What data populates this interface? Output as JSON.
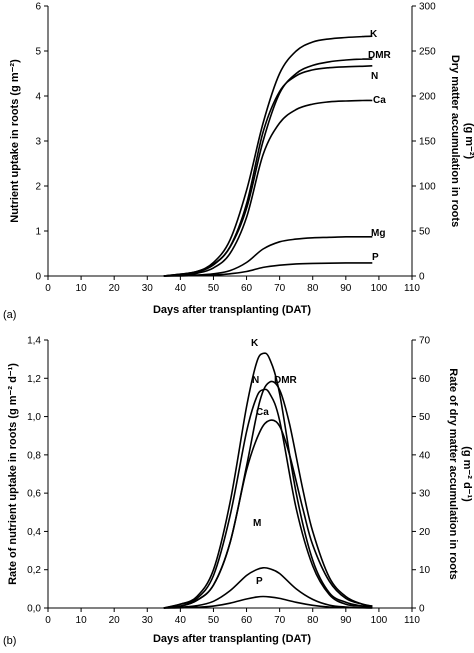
{
  "chart_data": [
    {
      "type": "line",
      "panel_label": "(a)",
      "xlabel": "Days after transplanting (DAT)",
      "ylabel": "Nutrient uptake in roots (g m⁻²)",
      "y2label_line1": "Dry matter accumulation in roots",
      "y2label_line2": "(g m⁻²)",
      "xlim": [
        0,
        110
      ],
      "ylim": [
        0,
        6
      ],
      "y2lim": [
        0,
        300
      ],
      "xticks": [
        "0",
        "10",
        "20",
        "30",
        "40",
        "50",
        "60",
        "70",
        "80",
        "90",
        "100",
        "110"
      ],
      "yticks": [
        "0",
        "1",
        "2",
        "3",
        "4",
        "5",
        "6"
      ],
      "y2ticks": [
        "0",
        "50",
        "100",
        "150",
        "200",
        "250",
        "300"
      ],
      "grid": false,
      "series": [
        {
          "name": "K",
          "axis": "left",
          "x": [
            35,
            40,
            45,
            50,
            55,
            60,
            65,
            70,
            75,
            80,
            85,
            90,
            95,
            98
          ],
          "y": [
            0.0,
            0.04,
            0.1,
            0.3,
            0.8,
            1.9,
            3.4,
            4.5,
            5.0,
            5.2,
            5.27,
            5.3,
            5.32,
            5.33
          ]
        },
        {
          "name": "DMR",
          "axis": "right",
          "x": [
            35,
            40,
            45,
            50,
            55,
            60,
            65,
            70,
            75,
            80,
            85,
            90,
            95,
            98
          ],
          "y": [
            0,
            2,
            5,
            13,
            32,
            75,
            150,
            203,
            225,
            234,
            238,
            240,
            241,
            241
          ]
        },
        {
          "name": "N",
          "axis": "left",
          "x": [
            35,
            40,
            45,
            50,
            55,
            60,
            65,
            70,
            75,
            80,
            85,
            90,
            95,
            98
          ],
          "y": [
            0.0,
            0.03,
            0.08,
            0.25,
            0.65,
            1.6,
            3.2,
            4.1,
            4.45,
            4.58,
            4.63,
            4.65,
            4.66,
            4.67
          ]
        },
        {
          "name": "Ca",
          "axis": "left",
          "x": [
            35,
            40,
            45,
            50,
            55,
            60,
            65,
            70,
            75,
            80,
            85,
            90,
            95,
            98
          ],
          "y": [
            0.0,
            0.02,
            0.06,
            0.18,
            0.5,
            1.3,
            2.7,
            3.4,
            3.7,
            3.82,
            3.87,
            3.89,
            3.9,
            3.9
          ]
        },
        {
          "name": "Mg",
          "axis": "left",
          "x": [
            35,
            40,
            45,
            50,
            55,
            60,
            65,
            70,
            75,
            80,
            85,
            90,
            95,
            98
          ],
          "y": [
            0.0,
            0.01,
            0.02,
            0.05,
            0.12,
            0.3,
            0.6,
            0.76,
            0.82,
            0.85,
            0.86,
            0.87,
            0.87,
            0.87
          ]
        },
        {
          "name": "P",
          "axis": "left",
          "x": [
            35,
            40,
            45,
            50,
            55,
            60,
            65,
            70,
            75,
            80,
            85,
            90,
            95,
            98
          ],
          "y": [
            0.0,
            0.003,
            0.01,
            0.02,
            0.05,
            0.1,
            0.19,
            0.24,
            0.27,
            0.28,
            0.285,
            0.29,
            0.29,
            0.29
          ]
        }
      ]
    },
    {
      "type": "line",
      "panel_label": "(b)",
      "xlabel": "Days after transplanting (DAT)",
      "ylabel": "Rate of nutrient uptake in roots (g m⁻² d⁻¹)",
      "y2label_line1": "Rate of dry matter accumulation in roots",
      "y2label_line2": "(g m⁻² d⁻¹)",
      "xlim": [
        0,
        110
      ],
      "ylim": [
        0,
        1.4
      ],
      "y2lim": [
        0,
        70
      ],
      "xticks": [
        "0",
        "10",
        "20",
        "30",
        "40",
        "50",
        "60",
        "70",
        "80",
        "90",
        "100",
        "110"
      ],
      "yticks": [
        "0,0",
        "0,2",
        "0,4",
        "0,6",
        "0,8",
        "1,0",
        "1,2",
        "1,4"
      ],
      "y2ticks": [
        "0",
        "10",
        "20",
        "30",
        "40",
        "50",
        "60",
        "70"
      ],
      "grid": false,
      "series": [
        {
          "name": "K",
          "axis": "left",
          "x": [
            35,
            40,
            45,
            50,
            55,
            60,
            63,
            65,
            67,
            70,
            75,
            80,
            85,
            90,
            95,
            98
          ],
          "y": [
            0.0,
            0.02,
            0.06,
            0.2,
            0.55,
            1.05,
            1.28,
            1.33,
            1.3,
            1.12,
            0.6,
            0.25,
            0.08,
            0.03,
            0.01,
            0.005
          ]
        },
        {
          "name": "N",
          "axis": "left",
          "x": [
            35,
            40,
            45,
            50,
            55,
            60,
            63,
            65,
            67,
            70,
            75,
            80,
            85,
            90,
            95,
            98
          ],
          "y": [
            0.0,
            0.02,
            0.05,
            0.17,
            0.48,
            0.92,
            1.1,
            1.14,
            1.12,
            0.98,
            0.52,
            0.22,
            0.07,
            0.02,
            0.01,
            0.005
          ]
        },
        {
          "name": "DMR",
          "axis": "right",
          "x": [
            35,
            40,
            45,
            50,
            55,
            60,
            64,
            67,
            70,
            73,
            77,
            80,
            85,
            90,
            95,
            98
          ],
          "y": [
            0,
            0.5,
            2,
            6,
            17,
            37,
            54,
            59,
            57,
            48,
            31,
            20,
            8,
            3,
            1,
            0.5
          ]
        },
        {
          "name": "Ca",
          "axis": "left",
          "x": [
            35,
            40,
            45,
            50,
            55,
            60,
            64,
            67,
            70,
            73,
            77,
            80,
            85,
            90,
            95,
            98
          ],
          "y": [
            0.0,
            0.01,
            0.04,
            0.12,
            0.34,
            0.72,
            0.92,
            0.98,
            0.95,
            0.8,
            0.52,
            0.33,
            0.14,
            0.05,
            0.02,
            0.01
          ]
        },
        {
          "name": "M",
          "axis": "left",
          "x": [
            35,
            40,
            45,
            50,
            55,
            60,
            63,
            65,
            67,
            70,
            75,
            80,
            85,
            90,
            95,
            98
          ],
          "y": [
            0.0,
            0.004,
            0.012,
            0.035,
            0.09,
            0.17,
            0.2,
            0.21,
            0.205,
            0.18,
            0.1,
            0.045,
            0.015,
            0.005,
            0.002,
            0.001
          ]
        },
        {
          "name": "P",
          "axis": "left",
          "x": [
            35,
            40,
            45,
            50,
            55,
            60,
            63,
            65,
            67,
            70,
            75,
            80,
            85,
            90,
            95,
            98
          ],
          "y": [
            0.0,
            0.001,
            0.004,
            0.01,
            0.025,
            0.047,
            0.057,
            0.06,
            0.058,
            0.05,
            0.03,
            0.014,
            0.005,
            0.002,
            0.001,
            0.0005
          ]
        }
      ]
    }
  ]
}
